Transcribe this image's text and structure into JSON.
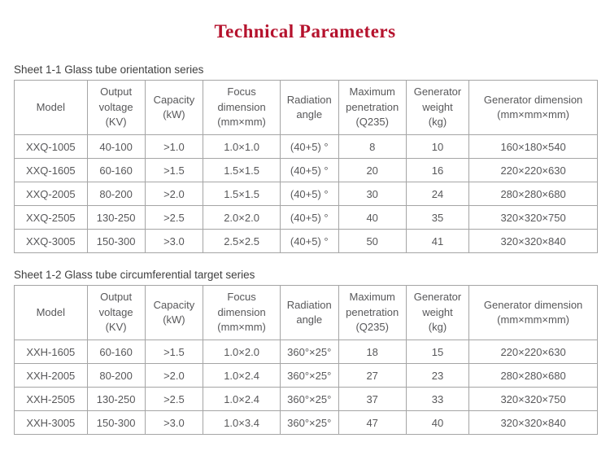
{
  "page": {
    "title": "Technical Parameters"
  },
  "colors": {
    "title": "#b5122d",
    "table_border": "#a5a5a5",
    "table_text": "#58585a",
    "label_text": "#3f3f3f"
  },
  "tables": [
    {
      "sheet_label": "Sheet 1-1 Glass tube orientation series",
      "headers": [
        [
          "Model"
        ],
        [
          "Output",
          "voltage",
          "(KV)"
        ],
        [
          "Capacity",
          "(kW)"
        ],
        [
          "Focus",
          "dimension",
          "(mm×mm)"
        ],
        [
          "Radiation",
          "angle"
        ],
        [
          "Maximum",
          "penetration",
          "(Q235)"
        ],
        [
          "Generator",
          "weight",
          "(kg)"
        ],
        [
          "Generator dimension",
          "(mm×mm×mm)"
        ]
      ],
      "rows": [
        [
          "XXQ-1005",
          "40-100",
          ">1.0",
          "1.0×1.0",
          "(40+5) °",
          "8",
          "10",
          "160×180×540"
        ],
        [
          "XXQ-1605",
          "60-160",
          ">1.5",
          "1.5×1.5",
          "(40+5) °",
          "20",
          "16",
          "220×220×630"
        ],
        [
          "XXQ-2005",
          "80-200",
          ">2.0",
          "1.5×1.5",
          "(40+5) °",
          "30",
          "24",
          "280×280×680"
        ],
        [
          "XXQ-2505",
          "130-250",
          ">2.5",
          "2.0×2.0",
          "(40+5) °",
          "40",
          "35",
          "320×320×750"
        ],
        [
          "XXQ-3005",
          "150-300",
          ">3.0",
          "2.5×2.5",
          "(40+5) °",
          "50",
          "41",
          "320×320×840"
        ]
      ]
    },
    {
      "sheet_label": "Sheet 1-2 Glass tube circumferential target series",
      "headers": [
        [
          "Model"
        ],
        [
          "Output",
          "voltage",
          "(KV)"
        ],
        [
          "Capacity",
          "(kW)"
        ],
        [
          "Focus",
          "dimension",
          "(mm×mm)"
        ],
        [
          "Radiation",
          "angle"
        ],
        [
          "Maximum",
          "penetration",
          "(Q235)"
        ],
        [
          "Generator",
          "weight",
          "(kg)"
        ],
        [
          "Generator dimension",
          "(mm×mm×mm)"
        ]
      ],
      "rows": [
        [
          "XXH-1605",
          "60-160",
          ">1.5",
          "1.0×2.0",
          "360°×25°",
          "18",
          "15",
          "220×220×630"
        ],
        [
          "XXH-2005",
          "80-200",
          ">2.0",
          "1.0×2.4",
          "360°×25°",
          "27",
          "23",
          "280×280×680"
        ],
        [
          "XXH-2505",
          "130-250",
          ">2.5",
          "1.0×2.4",
          "360°×25°",
          "37",
          "33",
          "320×320×750"
        ],
        [
          "XXH-3005",
          "150-300",
          ">3.0",
          "1.0×3.4",
          "360°×25°",
          "47",
          "40",
          "320×320×840"
        ]
      ]
    }
  ]
}
